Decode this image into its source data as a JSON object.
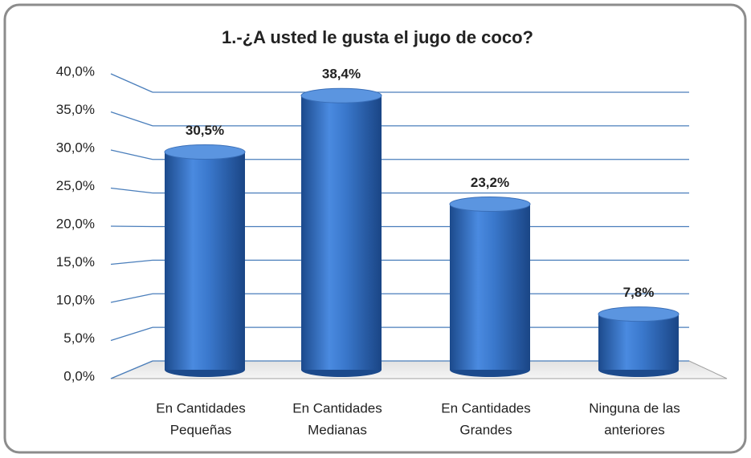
{
  "chart_data": {
    "type": "bar",
    "title": "1.-¿A usted le gusta el jugo de coco?",
    "categories": [
      [
        "En Cantidades",
        "Pequeñas"
      ],
      [
        "En Cantidades",
        "Medianas"
      ],
      [
        "En Cantidades",
        "Grandes"
      ],
      [
        "Ninguna de las",
        "anteriores"
      ]
    ],
    "values": [
      30.5,
      38.4,
      23.2,
      7.8
    ],
    "value_labels": [
      "30,5%",
      "38,4%",
      "23,2%",
      "7,8%"
    ],
    "color": "#2f66b3",
    "ylim": [
      0,
      40
    ],
    "yticks": [
      {
        "value": 0,
        "label": "0,0%"
      },
      {
        "value": 5,
        "label": "5,0%"
      },
      {
        "value": 10,
        "label": "10,0%"
      },
      {
        "value": 15,
        "label": "15,0%"
      },
      {
        "value": 20,
        "label": "20,0%"
      },
      {
        "value": 25,
        "label": "25,0%"
      },
      {
        "value": 30,
        "label": "30,0%"
      },
      {
        "value": 35,
        "label": "35,0%"
      },
      {
        "value": 40,
        "label": "40,0%"
      }
    ],
    "grid": true
  }
}
